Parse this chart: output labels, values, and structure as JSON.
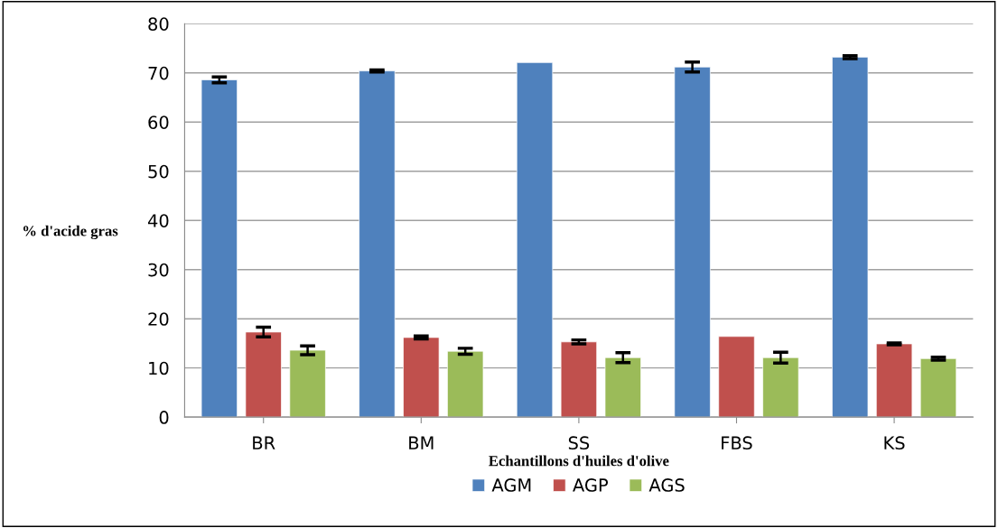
{
  "chart_data": {
    "type": "bar",
    "xlabel": "Echantillons d'huiles d'olive",
    "ylabel": "% d'acide gras",
    "categories": [
      "BR",
      "BM",
      "SS",
      "FBS",
      "KS"
    ],
    "series": [
      {
        "name": "AGM",
        "color": "#4f81bd",
        "values": [
          68.6,
          70.4,
          72.1,
          71.2,
          73.2
        ],
        "errors": [
          0.6,
          0.2,
          null,
          1.0,
          0.3
        ]
      },
      {
        "name": "AGP",
        "color": "#c0504d",
        "values": [
          17.3,
          16.2,
          15.3,
          16.4,
          14.9
        ],
        "errors": [
          1.0,
          0.3,
          0.4,
          null,
          0.2
        ]
      },
      {
        "name": "AGS",
        "color": "#9bbb59",
        "values": [
          13.6,
          13.4,
          12.1,
          12.1,
          11.9
        ],
        "errors": [
          0.9,
          0.6,
          1.0,
          1.1,
          0.3
        ]
      }
    ],
    "ylim": [
      0,
      80
    ],
    "yticks": [
      0,
      10,
      20,
      30,
      40,
      50,
      60,
      70,
      80
    ],
    "grid": "y",
    "legend": "bottom"
  }
}
